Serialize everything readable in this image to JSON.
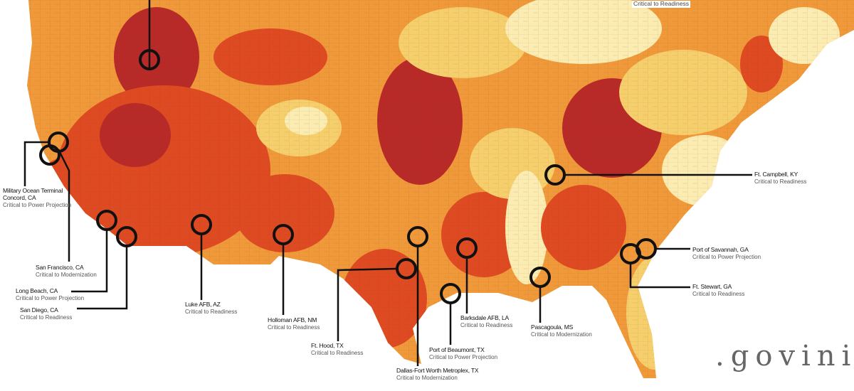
{
  "map": {
    "colors": {
      "pale": "#fbecb2",
      "yellow": "#f6cf6d",
      "orange": "#f0993a",
      "red": "#de4a22",
      "dark_red": "#b82a28",
      "marker": "#111111"
    },
    "markers": [
      {
        "id": "top-cut",
        "name": "",
        "category": "Critical to Readiness"
      },
      {
        "id": "concord",
        "name": "Military Ocean Terminal Concord, CA",
        "category": "Critical to Power Projection"
      },
      {
        "id": "sanfrancisco",
        "name": "San Francisco, CA",
        "category": "Critical to Modernization"
      },
      {
        "id": "longbeach",
        "name": "Long Beach, CA",
        "category": "Critical to Power Projection"
      },
      {
        "id": "sandiego",
        "name": "San Diego, CA",
        "category": "Critical to Readiness"
      },
      {
        "id": "luke",
        "name": "Luke AFB, AZ",
        "category": "Critical to Readiness"
      },
      {
        "id": "holloman",
        "name": "Holloman AFB, NM",
        "category": "Critical to Readiness"
      },
      {
        "id": "fthood",
        "name": "Ft. Hood, TX",
        "category": "Critical to Readiness"
      },
      {
        "id": "dallas",
        "name": "Dallas-Fort Worth Metroplex, TX",
        "category": "Critical to Modernization"
      },
      {
        "id": "beaumont",
        "name": "Port of Beaumont, TX",
        "category": "Critical to Power Projection"
      },
      {
        "id": "barksdale",
        "name": "Barksdale AFB, LA",
        "category": "Critical to Readiness"
      },
      {
        "id": "pascagoula",
        "name": "Pascagoula, MS",
        "category": "Critical to Modernization"
      },
      {
        "id": "ftcampbell",
        "name": "Ft. Campbell, KY",
        "category": "Critical to Readiness"
      },
      {
        "id": "savannah",
        "name": "Port of Savannah, GA",
        "category": "Critical to Power Projection"
      },
      {
        "id": "ftstewart",
        "name": "Ft. Stewart, GA",
        "category": "Critical to Readiness"
      }
    ]
  },
  "logo": {
    "text": "govini",
    "dot": "."
  }
}
